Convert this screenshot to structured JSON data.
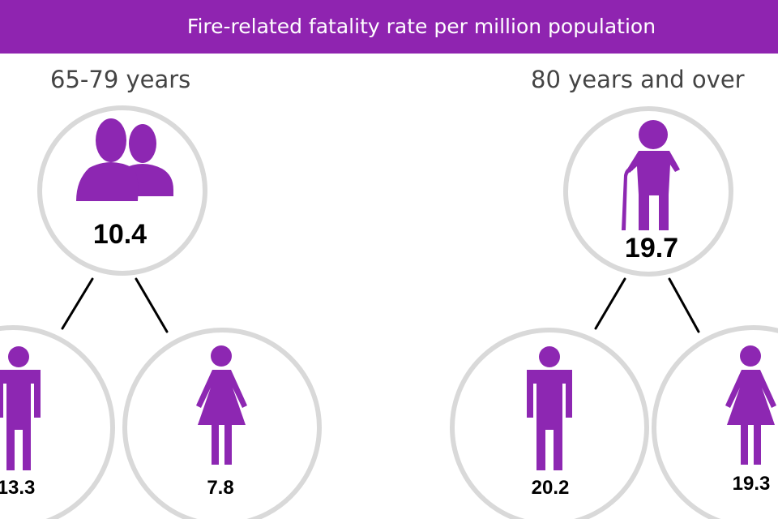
{
  "header": {
    "title": "Fire-related fatality rate per million population"
  },
  "groups": [
    {
      "title": "65-79 years",
      "overall": {
        "value": "10.4",
        "icon": "two-people-icon"
      },
      "male": {
        "value": "13.3",
        "icon": "man-icon"
      },
      "female": {
        "value": "7.8",
        "icon": "woman-icon"
      }
    },
    {
      "title": "80 years and over",
      "overall": {
        "value": "19.7",
        "icon": "elderly-person-with-cane-icon"
      },
      "male": {
        "value": "20.2",
        "icon": "man-icon"
      },
      "female": {
        "value": "19.3",
        "icon": "woman-icon"
      }
    }
  ],
  "colors": {
    "accent": "#8f24b0",
    "icon": "#8d27b2",
    "ring": "#d9d9d9",
    "connector": "#000000"
  }
}
